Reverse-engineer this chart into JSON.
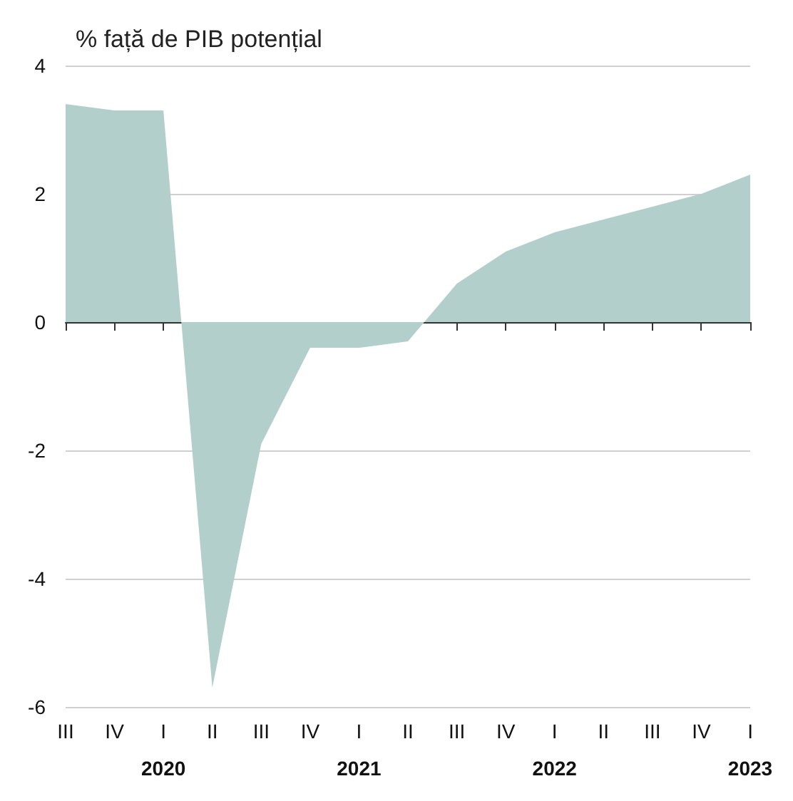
{
  "chart_data": {
    "type": "area",
    "ylabel": "% față de PIB potențial",
    "categories": [
      "III",
      "IV",
      "I\n2020",
      "II",
      "III",
      "IV",
      "I\n2021",
      "II",
      "III",
      "IV",
      "I\n2022",
      "II",
      "III",
      "IV",
      "I\n2023"
    ],
    "values": [
      3.4,
      3.3,
      3.3,
      -5.7,
      -1.9,
      -0.4,
      -0.4,
      -0.3,
      0.6,
      1.1,
      1.4,
      1.6,
      1.8,
      2.0,
      2.3
    ],
    "color": "#b3cfcb",
    "ylim": [
      -6,
      4
    ],
    "yticks": [
      -6,
      -4,
      -2,
      0,
      2,
      4
    ],
    "grid": "y"
  }
}
